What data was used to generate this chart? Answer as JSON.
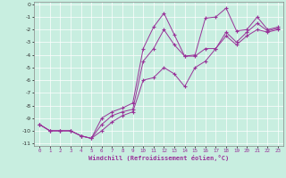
{
  "xlabel": "Windchill (Refroidissement éolien,°C)",
  "xlim": [
    -0.5,
    23.5
  ],
  "ylim": [
    -11.2,
    0.2
  ],
  "xticks": [
    0,
    1,
    2,
    3,
    4,
    5,
    6,
    7,
    8,
    9,
    10,
    11,
    12,
    13,
    14,
    15,
    16,
    17,
    18,
    19,
    20,
    21,
    22,
    23
  ],
  "yticks": [
    0,
    -1,
    -2,
    -3,
    -4,
    -5,
    -6,
    -7,
    -8,
    -9,
    -10,
    -11
  ],
  "bg_color": "#c8eee0",
  "line_color": "#993399",
  "grid_color": "#ffffff",
  "lines": [
    {
      "x": [
        0,
        1,
        2,
        3,
        4,
        5,
        6,
        7,
        8,
        9,
        10,
        11,
        12,
        13,
        14,
        15,
        16,
        17,
        18,
        19,
        20,
        21,
        22,
        23
      ],
      "y": [
        -9.5,
        -10,
        -10,
        -10,
        -10.4,
        -10.6,
        -9.0,
        -8.5,
        -8.2,
        -7.8,
        -3.5,
        -1.8,
        -0.7,
        -2.4,
        -4.1,
        -4.0,
        -1.1,
        -1.0,
        -0.3,
        -2.1,
        -2.0,
        -1.0,
        -2.0,
        -1.8
      ]
    },
    {
      "x": [
        0,
        1,
        2,
        3,
        4,
        5,
        6,
        7,
        8,
        9,
        10,
        11,
        12,
        13,
        14,
        15,
        16,
        17,
        18,
        19,
        20,
        21,
        22,
        23
      ],
      "y": [
        -9.5,
        -10,
        -10,
        -10,
        -10.4,
        -10.6,
        -9.5,
        -8.8,
        -8.5,
        -8.3,
        -4.5,
        -3.5,
        -2.0,
        -3.2,
        -4.1,
        -4.1,
        -3.5,
        -3.5,
        -2.2,
        -3.0,
        -2.2,
        -1.5,
        -2.1,
        -1.9
      ]
    },
    {
      "x": [
        0,
        1,
        2,
        3,
        4,
        5,
        6,
        7,
        8,
        9,
        10,
        11,
        12,
        13,
        14,
        15,
        16,
        17,
        18,
        19,
        20,
        21,
        22,
        23
      ],
      "y": [
        -9.5,
        -10,
        -10,
        -10,
        -10.4,
        -10.6,
        -10.0,
        -9.3,
        -8.8,
        -8.5,
        -6.0,
        -5.8,
        -5.0,
        -5.5,
        -6.5,
        -5.0,
        -4.5,
        -3.5,
        -2.5,
        -3.2,
        -2.5,
        -2.0,
        -2.2,
        -2.0
      ]
    }
  ]
}
